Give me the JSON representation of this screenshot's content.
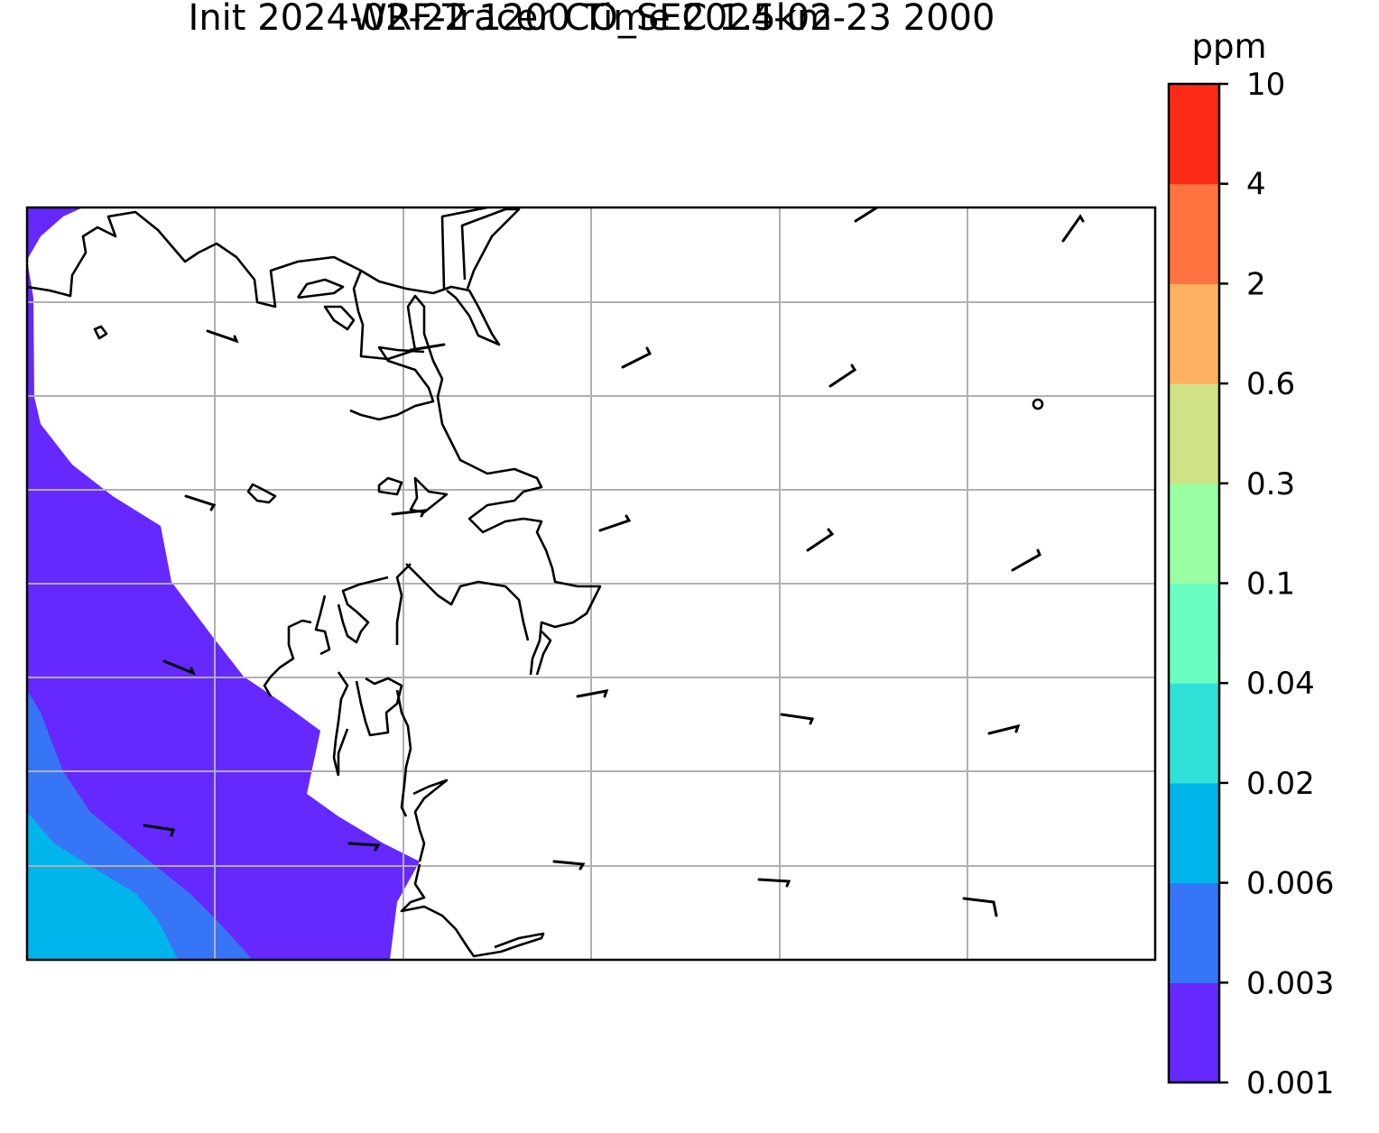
{
  "title": {
    "line1": "WRF-Tracer CO_SEC 1.5km",
    "line2": "Init 2024-02-22 1200 Time 2024-02-23 2000"
  },
  "colorbar": {
    "unit": "ppm",
    "levels": [
      "0.001",
      "0.003",
      "0.006",
      "0.02",
      "0.04",
      "0.1",
      "0.3",
      "0.6",
      "2",
      "4",
      "10"
    ],
    "colors": [
      "#6528fe",
      "#3676f6",
      "#00b5eb",
      "#30e0d6",
      "#6afdc1",
      "#9afea2",
      "#cfe285",
      "#feb061",
      "#fe733f",
      "#fe2a18"
    ]
  },
  "map": {
    "background": "#ffffff",
    "gridline_color": "#b0b0b0",
    "coastline_color": "#000000",
    "wind_barb_color": "#000000",
    "tracer_bands": [
      "0.001-0.003",
      "0.003-0.006",
      "0.006-0.02"
    ]
  }
}
